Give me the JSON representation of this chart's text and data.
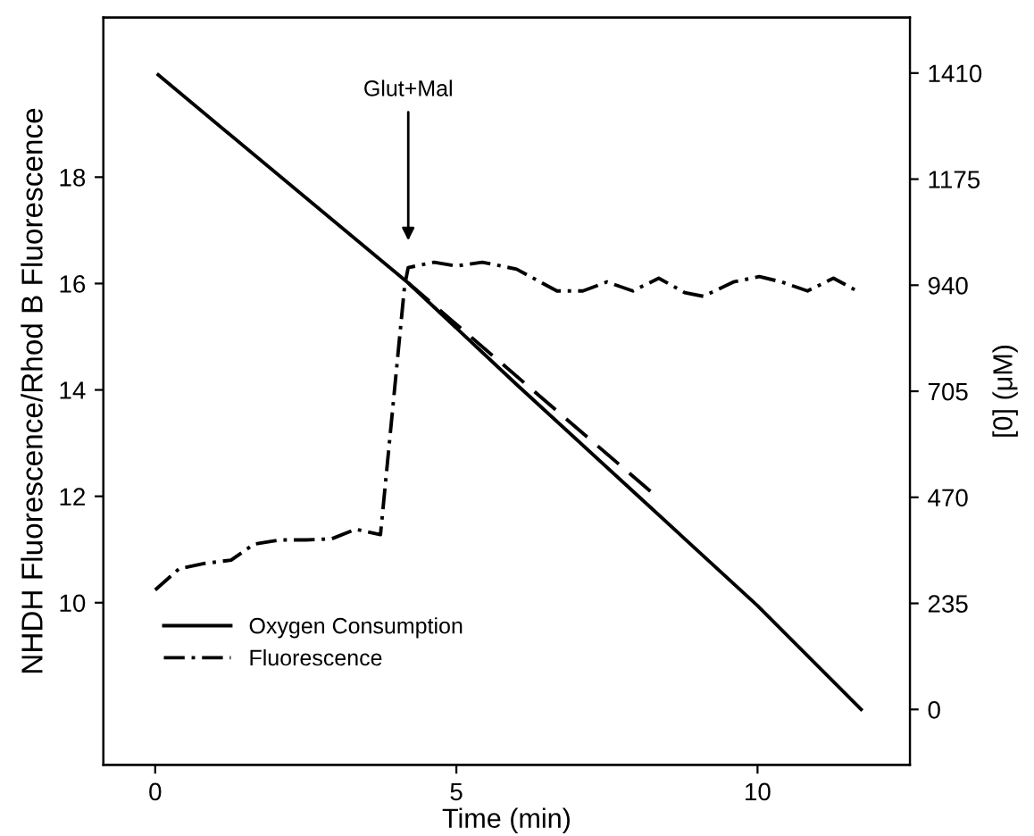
{
  "chart_data": {
    "type": "line",
    "xlabel": "Time (min)",
    "ylabel": "NHDH Fluorescence/Rhod B Fluorescence",
    "y2label": "[0] (μM)",
    "xlim": [
      -0.86,
      12.53
    ],
    "xticks": [
      0,
      5,
      10
    ],
    "ylim": [
      6.95,
      21.0
    ],
    "yticks": [
      10,
      12,
      14,
      16,
      18
    ],
    "y2lim": [
      -123,
      1533
    ],
    "y2ticks": [
      0,
      235,
      470,
      705,
      940,
      1175,
      1410
    ],
    "legend": "bottom left",
    "grid": false,
    "annotations": [
      "Glut+Mal"
    ],
    "series": [
      {
        "name": "Oxygen Consumption",
        "color": "#000000",
        "axis": "y2",
        "line_style": "solid",
        "x": [
          0.05,
          4.2,
          6,
          8,
          10,
          11.72
        ],
        "values": [
          1406,
          945,
          720,
          475,
          230,
          0
        ]
      },
      {
        "name": "Fluorescence",
        "color": "#000000",
        "line_style": "dashdot",
        "x": [
          0,
          0.4,
          0.83,
          1.26,
          1.64,
          2.07,
          2.5,
          2.93,
          3.33,
          3.74,
          4.14,
          4.2,
          4.63,
          5.0,
          5.43,
          5.57,
          6.0,
          6.67,
          7.1,
          7.5,
          7.93,
          8.36,
          8.79,
          9.1,
          9.6,
          10.03,
          10.4,
          10.83,
          11.26,
          11.7
        ],
        "values": [
          10.24,
          10.64,
          10.74,
          10.8,
          11.1,
          11.18,
          11.18,
          11.2,
          11.38,
          11.28,
          15.95,
          16.3,
          16.4,
          16.33,
          16.4,
          16.37,
          16.27,
          15.86,
          15.86,
          16.03,
          15.86,
          16.1,
          15.83,
          15.76,
          16.03,
          16.13,
          16.03,
          15.86,
          16.1,
          15.83
        ]
      },
      {
        "color": "#000000",
        "axis": "y2",
        "line_style": "dashed",
        "x": [
          4.2,
          8.25
        ],
        "values": [
          945,
          480
        ]
      }
    ]
  }
}
